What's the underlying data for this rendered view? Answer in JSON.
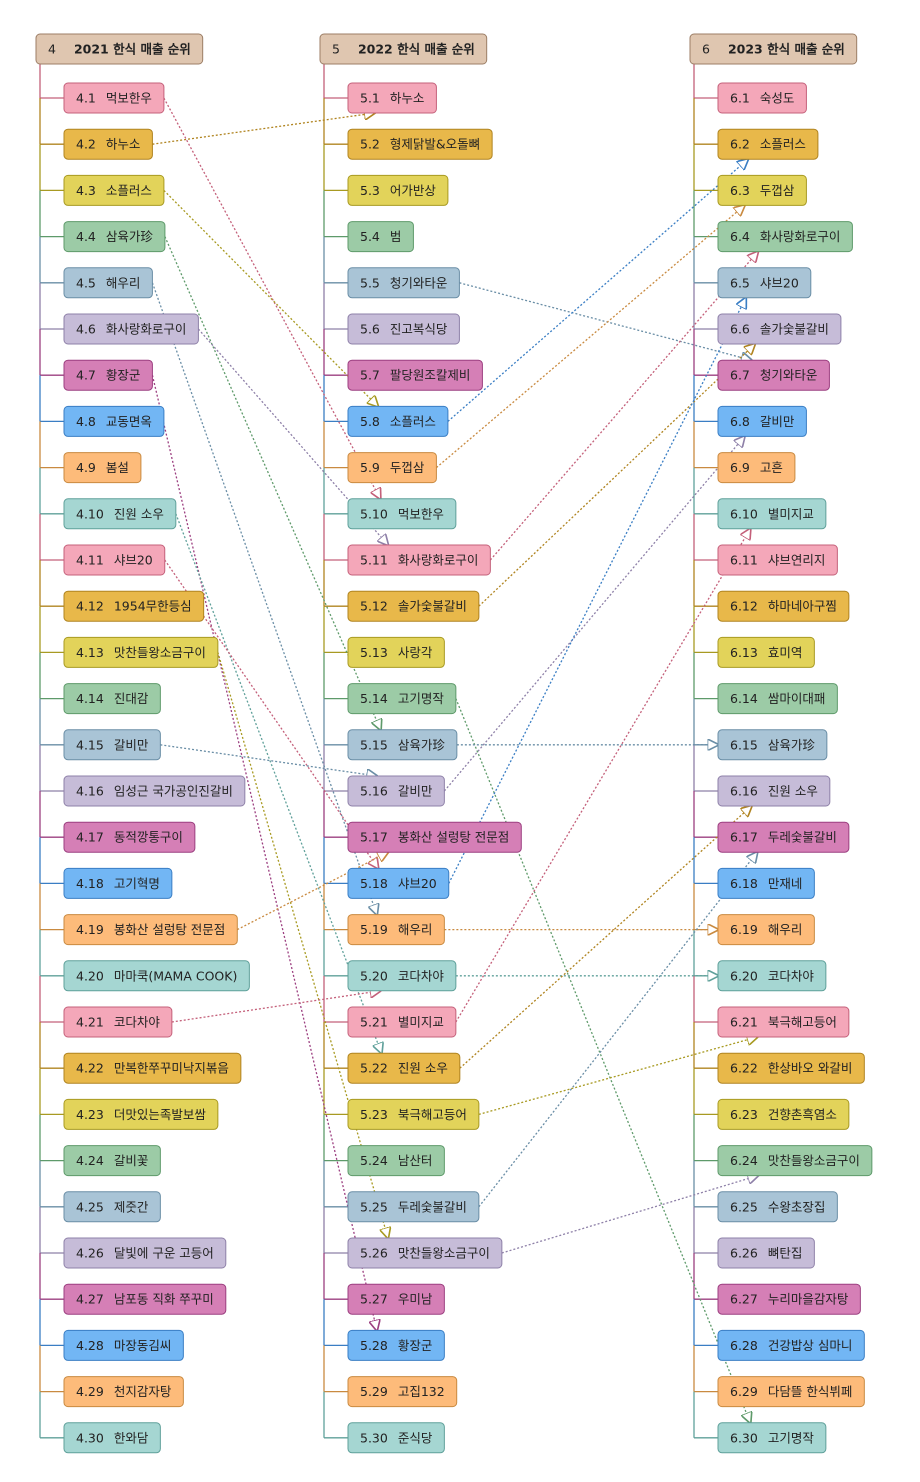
{
  "palette": {
    "pink": {
      "fill": "#f4a7b9",
      "stroke": "#c4607a"
    },
    "gold": {
      "fill": "#e8b84a",
      "stroke": "#b08420"
    },
    "yellow": {
      "fill": "#e2d35a",
      "stroke": "#a89a22"
    },
    "green": {
      "fill": "#9ccba6",
      "stroke": "#5e9a6a"
    },
    "steel": {
      "fill": "#a9c4d6",
      "stroke": "#6a8ea6"
    },
    "lilac": {
      "fill": "#c6bcd8",
      "stroke": "#8e80a8"
    },
    "magenta": {
      "fill": "#d57fb6",
      "stroke": "#9c3f80"
    },
    "blue": {
      "fill": "#72b6f4",
      "stroke": "#3a7ec4"
    },
    "orange": {
      "fill": "#fdbb7a",
      "stroke": "#c98a40"
    },
    "teal": {
      "fill": "#a5d6d2",
      "stroke": "#5fa09a"
    }
  },
  "color_cycle": [
    "pink",
    "gold",
    "yellow",
    "green",
    "steel",
    "lilac",
    "magenta",
    "blue",
    "orange",
    "teal"
  ],
  "header_style": {
    "fill": "#dfc6b0",
    "stroke": "#9c7e66"
  },
  "columns": [
    {
      "num": "4",
      "title": "2021 한식 매출 순위",
      "items": [
        {
          "num": "4.1",
          "label": "먹보한우"
        },
        {
          "num": "4.2",
          "label": "하누소"
        },
        {
          "num": "4.3",
          "label": "소플러스"
        },
        {
          "num": "4.4",
          "label": "삼육가珍"
        },
        {
          "num": "4.5",
          "label": "해우리"
        },
        {
          "num": "4.6",
          "label": "화사랑화로구이"
        },
        {
          "num": "4.7",
          "label": "황장군"
        },
        {
          "num": "4.8",
          "label": "교동면옥"
        },
        {
          "num": "4.9",
          "label": "봄설"
        },
        {
          "num": "4.10",
          "label": "진원 소우"
        },
        {
          "num": "4.11",
          "label": "샤브20"
        },
        {
          "num": "4.12",
          "label": "1954무한등심"
        },
        {
          "num": "4.13",
          "label": "맛찬들왕소금구이"
        },
        {
          "num": "4.14",
          "label": "진대감"
        },
        {
          "num": "4.15",
          "label": "갈비만"
        },
        {
          "num": "4.16",
          "label": "임성근 국가공인진갈비"
        },
        {
          "num": "4.17",
          "label": "동적깡통구이"
        },
        {
          "num": "4.18",
          "label": "고기혁명"
        },
        {
          "num": "4.19",
          "label": "봉화산 설렁탕 전문점"
        },
        {
          "num": "4.20",
          "label": "마마쿡(MAMA COOK)"
        },
        {
          "num": "4.21",
          "label": "코다차야"
        },
        {
          "num": "4.22",
          "label": "만복한쭈꾸미낙지볶음"
        },
        {
          "num": "4.23",
          "label": "더맛있는족발보쌈"
        },
        {
          "num": "4.24",
          "label": "갈비꽃"
        },
        {
          "num": "4.25",
          "label": "제줏간"
        },
        {
          "num": "4.26",
          "label": "달빛에 구운 고등어"
        },
        {
          "num": "4.27",
          "label": "남포동 직화 쭈꾸미"
        },
        {
          "num": "4.28",
          "label": "마장동김씨"
        },
        {
          "num": "4.29",
          "label": "천지감자탕"
        },
        {
          "num": "4.30",
          "label": "한와담"
        }
      ]
    },
    {
      "num": "5",
      "title": "2022 한식 매출 순위",
      "items": [
        {
          "num": "5.1",
          "label": "하누소"
        },
        {
          "num": "5.2",
          "label": "형제닭발&오돌뼈"
        },
        {
          "num": "5.3",
          "label": "어가반상"
        },
        {
          "num": "5.4",
          "label": "범"
        },
        {
          "num": "5.5",
          "label": "청기와타운"
        },
        {
          "num": "5.6",
          "label": "진고복식당"
        },
        {
          "num": "5.7",
          "label": "팔당원조칼제비"
        },
        {
          "num": "5.8",
          "label": "소플러스"
        },
        {
          "num": "5.9",
          "label": "두껍삼"
        },
        {
          "num": "5.10",
          "label": "먹보한우"
        },
        {
          "num": "5.11",
          "label": "화사랑화로구이"
        },
        {
          "num": "5.12",
          "label": "솔가숯불갈비"
        },
        {
          "num": "5.13",
          "label": "사랑각"
        },
        {
          "num": "5.14",
          "label": "고기명작"
        },
        {
          "num": "5.15",
          "label": "삼육가珍"
        },
        {
          "num": "5.16",
          "label": "갈비만"
        },
        {
          "num": "5.17",
          "label": "봉화산 설렁탕 전문점"
        },
        {
          "num": "5.18",
          "label": "샤브20"
        },
        {
          "num": "5.19",
          "label": "해우리"
        },
        {
          "num": "5.20",
          "label": "코다차야"
        },
        {
          "num": "5.21",
          "label": "별미지교"
        },
        {
          "num": "5.22",
          "label": "진원 소우"
        },
        {
          "num": "5.23",
          "label": "북극해고등어"
        },
        {
          "num": "5.24",
          "label": "남산터"
        },
        {
          "num": "5.25",
          "label": "두레숯불갈비"
        },
        {
          "num": "5.26",
          "label": "맛찬들왕소금구이"
        },
        {
          "num": "5.27",
          "label": "우미남"
        },
        {
          "num": "5.28",
          "label": "황장군"
        },
        {
          "num": "5.29",
          "label": "고집132"
        },
        {
          "num": "5.30",
          "label": "준식당"
        }
      ]
    },
    {
      "num": "6",
      "title": "2023 한식 매출 순위",
      "items": [
        {
          "num": "6.1",
          "label": "숙성도"
        },
        {
          "num": "6.2",
          "label": "소플러스"
        },
        {
          "num": "6.3",
          "label": "두껍삼"
        },
        {
          "num": "6.4",
          "label": "화사랑화로구이"
        },
        {
          "num": "6.5",
          "label": "샤브20"
        },
        {
          "num": "6.6",
          "label": "솔가숯불갈비"
        },
        {
          "num": "6.7",
          "label": "청기와타운"
        },
        {
          "num": "6.8",
          "label": "갈비만"
        },
        {
          "num": "6.9",
          "label": "고흔"
        },
        {
          "num": "6.10",
          "label": "별미지교"
        },
        {
          "num": "6.11",
          "label": "샤브연리지"
        },
        {
          "num": "6.12",
          "label": "하마네아구찜"
        },
        {
          "num": "6.13",
          "label": "효미역"
        },
        {
          "num": "6.14",
          "label": "쌈마이대패"
        },
        {
          "num": "6.15",
          "label": "삼육가珍"
        },
        {
          "num": "6.16",
          "label": "진원 소우"
        },
        {
          "num": "6.17",
          "label": "두레숯불갈비"
        },
        {
          "num": "6.18",
          "label": "만재네"
        },
        {
          "num": "6.19",
          "label": "해우리"
        },
        {
          "num": "6.20",
          "label": "코다차야"
        },
        {
          "num": "6.21",
          "label": "북극해고등어"
        },
        {
          "num": "6.22",
          "label": "한상바오 와갈비"
        },
        {
          "num": "6.23",
          "label": "건향촌흑염소"
        },
        {
          "num": "6.24",
          "label": "맛찬들왕소금구이"
        },
        {
          "num": "6.25",
          "label": "수왕초장집"
        },
        {
          "num": "6.26",
          "label": "뼈탄집"
        },
        {
          "num": "6.27",
          "label": "누리마을감자탕"
        },
        {
          "num": "6.28",
          "label": "건강밥상 심마니"
        },
        {
          "num": "6.29",
          "label": "다담뜰 한식뷔페"
        },
        {
          "num": "6.30",
          "label": "고기명작"
        }
      ]
    }
  ],
  "links": [
    {
      "from": "4.1",
      "to": "5.10"
    },
    {
      "from": "4.2",
      "to": "5.1"
    },
    {
      "from": "4.3",
      "to": "5.8"
    },
    {
      "from": "4.4",
      "to": "5.15"
    },
    {
      "from": "4.5",
      "to": "5.19"
    },
    {
      "from": "4.6",
      "to": "5.11"
    },
    {
      "from": "4.7",
      "to": "5.28"
    },
    {
      "from": "4.10",
      "to": "5.22"
    },
    {
      "from": "4.11",
      "to": "5.18"
    },
    {
      "from": "4.13",
      "to": "5.26"
    },
    {
      "from": "4.15",
      "to": "5.16"
    },
    {
      "from": "4.19",
      "to": "5.17"
    },
    {
      "from": "4.21",
      "to": "5.20"
    },
    {
      "from": "5.5",
      "to": "6.7"
    },
    {
      "from": "5.8",
      "to": "6.2"
    },
    {
      "from": "5.9",
      "to": "6.3"
    },
    {
      "from": "5.11",
      "to": "6.4"
    },
    {
      "from": "5.12",
      "to": "6.6"
    },
    {
      "from": "5.14",
      "to": "6.30"
    },
    {
      "from": "5.15",
      "to": "6.15"
    },
    {
      "from": "5.16",
      "to": "6.8"
    },
    {
      "from": "5.18",
      "to": "6.5"
    },
    {
      "from": "5.19",
      "to": "6.19"
    },
    {
      "from": "5.20",
      "to": "6.20"
    },
    {
      "from": "5.21",
      "to": "6.10"
    },
    {
      "from": "5.22",
      "to": "6.16"
    },
    {
      "from": "5.23",
      "to": "6.21"
    },
    {
      "from": "5.25",
      "to": "6.17"
    },
    {
      "from": "5.26",
      "to": "6.24"
    }
  ]
}
